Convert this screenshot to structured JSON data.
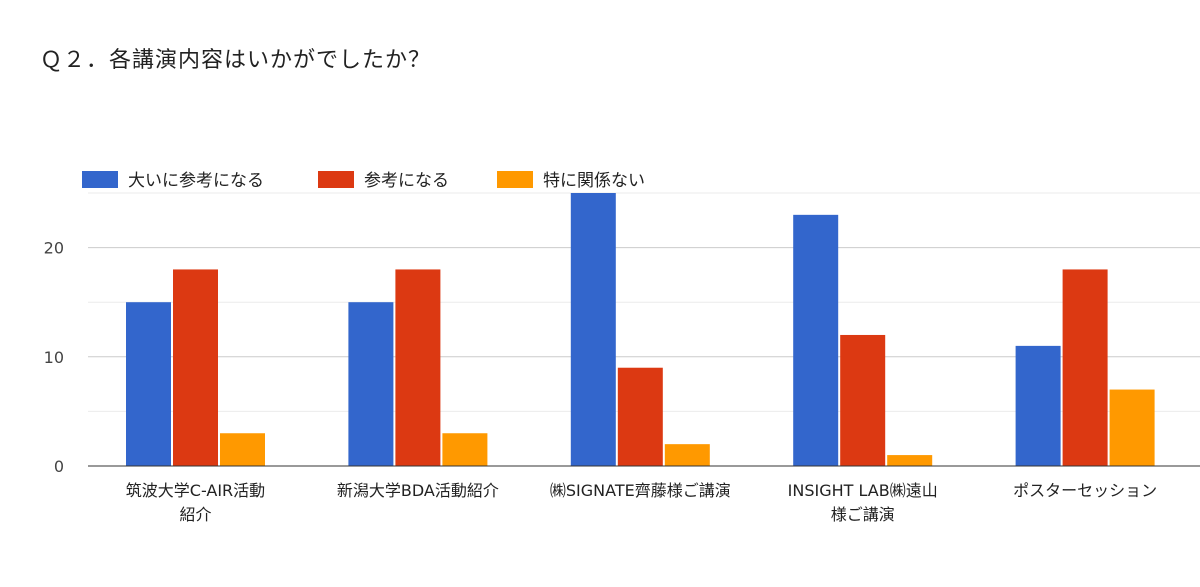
{
  "chart_data": {
    "type": "bar",
    "title": "Ｑ２．各講演内容はいかがでしたか？",
    "xlabel": "",
    "ylabel": "",
    "categories": [
      "筑波大学C-AIR活動紹介",
      "新潟大学BDA活動紹介",
      "㈱SIGNATE齊藤様ご講演",
      "INSIGHT LAB㈱遠山様ご講演",
      "ポスターセッション"
    ],
    "series": [
      {
        "name": "大いに参考になる",
        "color": "#3366cc",
        "values": [
          15,
          15,
          25,
          23,
          11
        ]
      },
      {
        "name": "参考になる",
        "color": "#dc3912",
        "values": [
          18,
          18,
          9,
          12,
          18
        ]
      },
      {
        "name": "特に関係ない",
        "color": "#ff9900",
        "values": [
          3,
          3,
          2,
          1,
          7
        ]
      }
    ],
    "ylim": [
      0,
      25
    ],
    "yticks": [
      0,
      10,
      20
    ],
    "grid": true,
    "legend_position": "top-left"
  }
}
